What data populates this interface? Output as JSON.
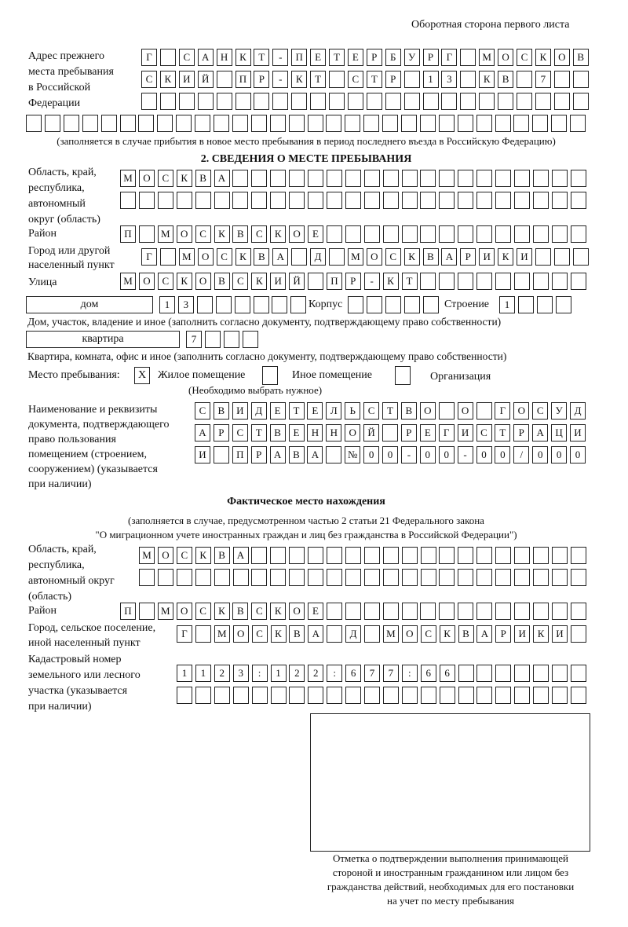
{
  "header": "Оборотная сторона первого листа",
  "prev_address": {
    "label": [
      "Адрес прежнего",
      "места пребывания",
      "в Российской",
      "Федерации"
    ],
    "rows": [
      "Г САНКТ-ПЕТЕРБУРГ МОСКОВ",
      "СКИЙ ПР-КТ СТР 13 КВ 7",
      "",
      ""
    ],
    "note": "(заполняется в случае прибытия в новое место пребывания в период последнего въезда в Российскую Федерацию)"
  },
  "section2": {
    "title": "2. СВЕДЕНИЯ О МЕСТЕ ПРЕБЫВАНИЯ",
    "region_label": [
      "Область, край,",
      "республика,",
      "автономный",
      "округ (область)"
    ],
    "region_rows": [
      "МОСКВА",
      ""
    ],
    "district_label": "Район",
    "district": "П МОСКВСКОЕ",
    "city_label": [
      "Город или другой",
      "населенный пункт"
    ],
    "city": "Г МОСКВА Д МОСКВАРИКИ",
    "street_label": "Улица",
    "street": "МОСКОВСКИЙ ПР-КТ",
    "house_type": "дом",
    "house": "13",
    "korpus_label": "Корпус",
    "korpus": "",
    "building_label": "Строение",
    "building": "1",
    "house_note": "Дом, участок, владение и иное (заполнить согласно документу, подтверждающему право собственности)",
    "flat_type": "квартира",
    "flat": "7",
    "flat_note": "Квартира, комната, офис и иное (заполнить согласно документу, подтверждающему право собственности)",
    "stay_label": "Место пребывания:",
    "stay_options": [
      {
        "label": "Жилое помещение",
        "mark": "X"
      },
      {
        "label": "Иное помещение",
        "mark": ""
      },
      {
        "label": "Организация",
        "mark": ""
      }
    ],
    "stay_note": "(Необходимо выбрать нужное)",
    "doc_label": [
      "Наименование и реквизиты",
      "документа, подтверждающего",
      "право пользования",
      "помещением (строением,",
      "сооружением) (указывается",
      "при наличии)"
    ],
    "doc_rows": [
      "СВИДЕТЕЛЬСТВО О ГОСУД",
      "АРСТВЕННОЙ РЕГИСТРАЦИ",
      "И ПРАВА №00-00-00/000"
    ]
  },
  "actual": {
    "title": "Фактическое место нахождения",
    "note": [
      "(заполняется в случае, предусмотренном частью 2 статьи 21 Федерального закона",
      "\"О миграционном учете иностранных граждан и лиц без гражданства в Российской Федерации\")"
    ],
    "region_label": [
      "Область, край,",
      "республика,",
      "автономный округ",
      "(область)"
    ],
    "region_rows": [
      "МОСКВА",
      ""
    ],
    "district_label": "Район",
    "district": "П МОСКВСКОЕ",
    "city_label": [
      "Город, сельское поселение,",
      "иной населенный пункт"
    ],
    "city": "Г МОСКВА Д МОСКВАРИКИ",
    "cadastre_label": [
      "Кадастровый номер",
      "земельного или лесного",
      "участка (указывается",
      "при наличии)"
    ],
    "cadastre_rows": [
      "1123:122:677:66",
      ""
    ]
  },
  "stamp_caption": [
    "Отметка о подтверждении выполнения принимающей",
    "стороной и иностранным гражданином или лицом без",
    "гражданства действий, необходимых для его постановки",
    "на учет по месту пребывания"
  ]
}
